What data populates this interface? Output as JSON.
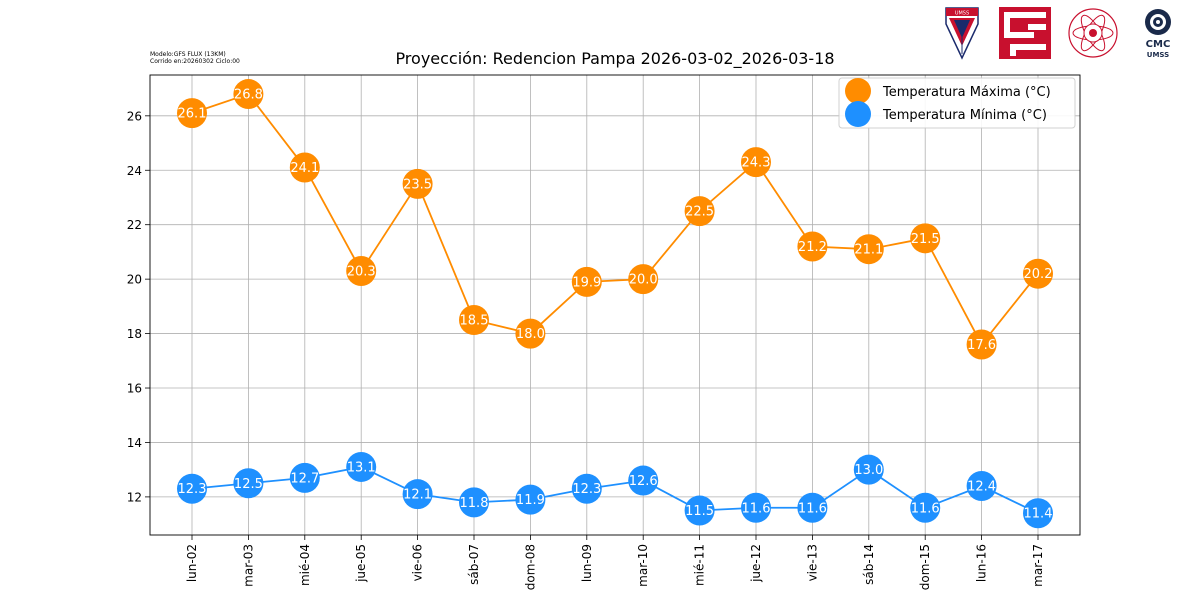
{
  "header": {
    "model_line": "Modelo:GFS FLUX (13KM)",
    "run_line": "Corrido en:20260302 Ciclo:00"
  },
  "logos": {
    "umss_text": "UMSS",
    "cmc_text": "CMC",
    "cmc_sub": "UMSS"
  },
  "colors": {
    "max": "#ff8c00",
    "min": "#1e90ff",
    "grid": "#b0b0b0"
  },
  "chart_data": {
    "type": "line",
    "title": "Proyección: Redencion Pampa 2026-03-02_2026-03-18",
    "xlabel": "",
    "ylabel": "",
    "categories": [
      "lun-02",
      "mar-03",
      "mié-04",
      "jue-05",
      "vie-06",
      "sáb-07",
      "dom-08",
      "lun-09",
      "mar-10",
      "mié-11",
      "jue-12",
      "vie-13",
      "sáb-14",
      "dom-15",
      "lun-16",
      "mar-17"
    ],
    "series": [
      {
        "name": "Temperatura Máxima  (°C)",
        "color": "#ff8c00",
        "values": [
          26.1,
          26.8,
          24.1,
          20.3,
          23.5,
          18.5,
          18.0,
          19.9,
          20.0,
          22.5,
          24.3,
          21.2,
          21.1,
          21.5,
          17.6,
          20.2
        ],
        "labels": [
          "26.1",
          "26.8",
          "24.1",
          "20.3",
          "23.5",
          "18.5",
          "18.0",
          "19.9",
          "20.0",
          "22.5",
          "24.3",
          "21.2",
          "21.1",
          "21.5",
          "17.6",
          "20.2"
        ]
      },
      {
        "name": "Temperatura Mínima  (°C)",
        "color": "#1e90ff",
        "values": [
          12.3,
          12.5,
          12.7,
          13.1,
          12.1,
          11.8,
          11.9,
          12.3,
          12.6,
          11.5,
          11.6,
          11.6,
          13.0,
          11.6,
          12.4,
          11.4
        ],
        "labels": [
          "12.3",
          "12.5",
          "12.7",
          "13.1",
          "12.1",
          "11.8",
          "11.9",
          "12.3",
          "12.6",
          "11.5",
          "11.6",
          "11.6",
          "13.0",
          "11.6",
          "12.4",
          "11.4"
        ]
      }
    ],
    "ylim": [
      10.6,
      27.5
    ],
    "yticks": [
      12,
      14,
      16,
      18,
      20,
      22,
      24,
      26
    ],
    "grid": true,
    "legend_position": "top-right"
  }
}
